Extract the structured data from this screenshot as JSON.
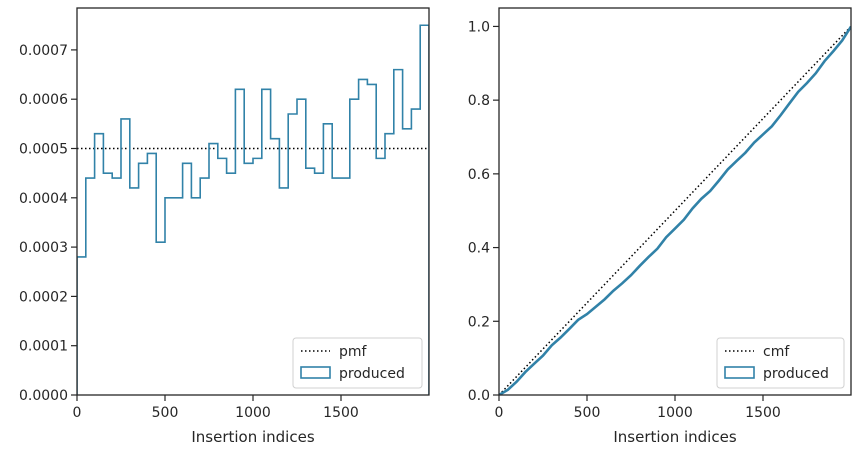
{
  "chart_data": [
    {
      "type": "histogram-step",
      "xlabel": "Insertion indices",
      "ylabel": "",
      "xlim": [
        0,
        2000
      ],
      "ylim": [
        0,
        0.000785
      ],
      "xticks": [
        0,
        500,
        1000,
        1500
      ],
      "xtick_labels": [
        "0",
        "500",
        "1000",
        "1500"
      ],
      "yticks": [
        0,
        0.0001,
        0.0002,
        0.0003,
        0.0004,
        0.0005,
        0.0006,
        0.0007
      ],
      "ytick_labels": [
        "0.0000",
        "0.0001",
        "0.0002",
        "0.0003",
        "0.0004",
        "0.0005",
        "0.0006",
        "0.0007"
      ],
      "legend": {
        "placement": "lower-right",
        "entries": [
          "pmf",
          "produced"
        ]
      },
      "reference_line": {
        "name": "pmf",
        "style": "dotted",
        "color": "#000000",
        "y": 0.0005
      },
      "series": [
        {
          "name": "produced",
          "color": "#3182a8",
          "bin_edges": [
            0,
            50,
            100,
            150,
            200,
            250,
            300,
            350,
            400,
            450,
            500,
            550,
            600,
            650,
            700,
            750,
            800,
            850,
            900,
            950,
            1000,
            1050,
            1100,
            1150,
            1200,
            1250,
            1300,
            1350,
            1400,
            1450,
            1500,
            1550,
            1600,
            1650,
            1700,
            1750,
            1800,
            1850,
            1900,
            1950,
            2000
          ],
          "values": [
            0.00028,
            0.00044,
            0.00053,
            0.00045,
            0.00044,
            0.00056,
            0.00042,
            0.00047,
            0.00049,
            0.00031,
            0.0004,
            0.0004,
            0.00047,
            0.0004,
            0.00044,
            0.00051,
            0.00048,
            0.00045,
            0.00062,
            0.00047,
            0.00048,
            0.00062,
            0.00052,
            0.00042,
            0.00057,
            0.0006,
            0.00046,
            0.00045,
            0.00055,
            0.00044,
            0.00044,
            0.0006,
            0.00064,
            0.00063,
            0.00048,
            0.00053,
            0.00066,
            0.00054,
            0.00058,
            0.00075
          ]
        }
      ]
    },
    {
      "type": "line",
      "xlabel": "Insertion indices",
      "ylabel": "",
      "xlim": [
        0,
        2000
      ],
      "ylim": [
        0,
        1.05
      ],
      "xticks": [
        0,
        500,
        1000,
        1500
      ],
      "xtick_labels": [
        "0",
        "500",
        "1000",
        "1500"
      ],
      "yticks": [
        0,
        0.2,
        0.4,
        0.6,
        0.8,
        1.0
      ],
      "ytick_labels": [
        "0.0",
        "0.2",
        "0.4",
        "0.6",
        "0.8",
        "1.0"
      ],
      "legend": {
        "placement": "lower-right",
        "entries": [
          "cmf",
          "produced"
        ]
      },
      "reference_line": {
        "name": "cmf",
        "style": "dotted",
        "color": "#000000",
        "x": [
          0,
          2000
        ],
        "y": [
          0,
          1.0
        ]
      },
      "series": [
        {
          "name": "produced",
          "color": "#3182a8",
          "x": [
            0,
            50,
            100,
            150,
            200,
            250,
            300,
            350,
            400,
            450,
            500,
            550,
            600,
            650,
            700,
            750,
            800,
            850,
            900,
            950,
            1000,
            1050,
            1100,
            1150,
            1200,
            1250,
            1300,
            1350,
            1400,
            1450,
            1500,
            1550,
            1600,
            1650,
            1700,
            1750,
            1800,
            1850,
            1900,
            1950,
            2000
          ],
          "y": [
            0,
            0.014,
            0.036,
            0.0625,
            0.085,
            0.107,
            0.135,
            0.156,
            0.1795,
            0.204,
            0.2195,
            0.2395,
            0.2595,
            0.283,
            0.303,
            0.325,
            0.3505,
            0.3745,
            0.397,
            0.428,
            0.4515,
            0.4755,
            0.5065,
            0.5325,
            0.5535,
            0.582,
            0.612,
            0.635,
            0.6575,
            0.685,
            0.707,
            0.729,
            0.759,
            0.791,
            0.8225,
            0.8465,
            0.873,
            0.906,
            0.933,
            0.962,
            0.9995
          ]
        }
      ]
    }
  ]
}
